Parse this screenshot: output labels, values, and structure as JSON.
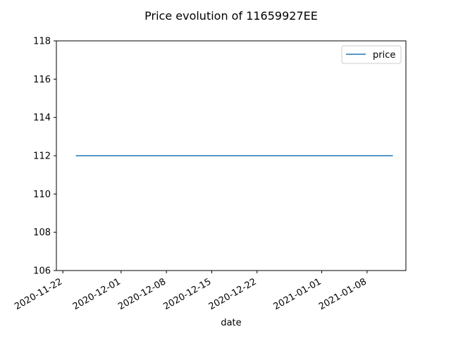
{
  "chart_data": {
    "type": "line",
    "title": "Price evolution of 11659927EE",
    "xlabel": "date",
    "ylabel": "",
    "x_type": "date",
    "xlim": [
      "2020-11-21",
      "2021-01-14"
    ],
    "ylim": [
      106.0,
      118.0
    ],
    "x_ticks": [
      "2020-11-22",
      "2020-12-01",
      "2020-12-08",
      "2020-12-15",
      "2020-12-22",
      "2021-01-01",
      "2021-01-08"
    ],
    "y_ticks": [
      106,
      108,
      110,
      112,
      114,
      116,
      118
    ],
    "grid": false,
    "legend_position": "top-right",
    "series": [
      {
        "name": "price",
        "color": "#1f77b4",
        "x": [
          "2020-11-24",
          "2021-01-12"
        ],
        "y": [
          112,
          112
        ]
      }
    ]
  }
}
